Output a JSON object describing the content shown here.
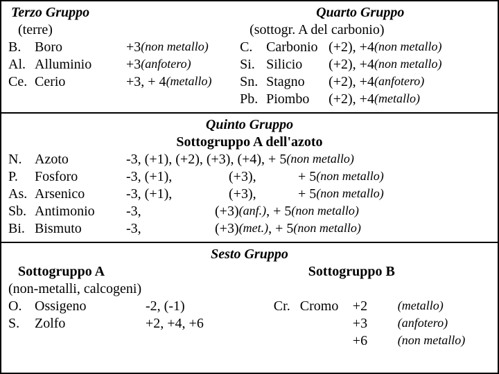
{
  "section1": {
    "left": {
      "title": "Terzo Gruppo",
      "subtitle": "(terre)",
      "rows": [
        {
          "sym": "B.",
          "name": "Boro",
          "oxwidth": "w-c",
          "ox": "",
          "ox2": "+3 ",
          "note": "(non metallo)"
        },
        {
          "sym": "Al.",
          "name": "Alluminio",
          "oxwidth": "w-c",
          "ox": "",
          "ox2": "+3 ",
          "note": "(anfotero)"
        },
        {
          "sym": "Ce.",
          "name": "Cerio",
          "oxwidth": "w-c",
          "ox": "",
          "ox2": "+3, + 4 ",
          "note": "(metallo)"
        }
      ]
    },
    "right": {
      "title": "Quarto Gruppo",
      "subtitle": "(sottogr. A del carbonio)",
      "rows": [
        {
          "sym": "C.",
          "name": "Carbonio",
          "ox": "(+2), +4 ",
          "note": "(non metallo)"
        },
        {
          "sym": "Si.",
          "name": "Silicio",
          "ox": "(+2), +4 ",
          "note": "(non metallo)"
        },
        {
          "sym": "Sn.",
          "name": "Stagno",
          "ox": "(+2), +4 ",
          "note": "(anfotero)"
        },
        {
          "sym": "Pb.",
          "name": "Piombo",
          "ox": "(+2), +4 ",
          "note": "(metallo)"
        }
      ]
    }
  },
  "section2": {
    "title": "Quinto Gruppo",
    "subtitle": "Sottogruppo A  dell'azoto",
    "rows": [
      {
        "sym": "N.",
        "name": "Azoto",
        "c1": "-3, (+1), (+2), (+3), (+4), + 5 ",
        "c2": "",
        "c3": "",
        "note": "(non metallo)"
      },
      {
        "sym": "P.",
        "name": "Fosforo",
        "c1": "-3, (+1),",
        "c2": "(+3),",
        "c3": "+ 5 ",
        "note": "(non metallo)"
      },
      {
        "sym": "As.",
        "name": "Arsenico",
        "c1": "-3, (+1),",
        "c2": "(+3),",
        "c3": "+ 5 ",
        "note": "(non metallo)"
      },
      {
        "sym": "Sb.",
        "name": "Antimonio",
        "c1": "-3,",
        "c2": "(+3) ",
        "c2n": "(anf.) ",
        "c3": ", + 5 ",
        "note": "(non metallo)"
      },
      {
        "sym": "Bi.",
        "name": "Bismuto",
        "c1": "-3,",
        "c2": "(+3) ",
        "c2n": "(met.) ",
        "c3": ", + 5 ",
        "note": "(non metallo)"
      }
    ]
  },
  "section3": {
    "title": "Sesto Gruppo",
    "left": {
      "subtitle": "Sottogruppo A",
      "subtitle2": "(non-metalli, calcogeni)",
      "rows": [
        {
          "sym": "O.",
          "name": "Ossigeno",
          "ox": "-2, (-1)"
        },
        {
          "sym": "S.",
          "name": "Zolfo",
          "ox": "+2, +4, +6"
        }
      ]
    },
    "right": {
      "subtitle": "Sottogruppo B",
      "rows": [
        {
          "sym": "Cr.",
          "name": "Cromo",
          "ox": "+2 ",
          "note": "(metallo)"
        },
        {
          "sym": "",
          "name": "",
          "ox": "+3 ",
          "note": "(anfotero)"
        },
        {
          "sym": "",
          "name": "",
          "ox": "+6 ",
          "note": "(non metallo)"
        }
      ]
    }
  }
}
